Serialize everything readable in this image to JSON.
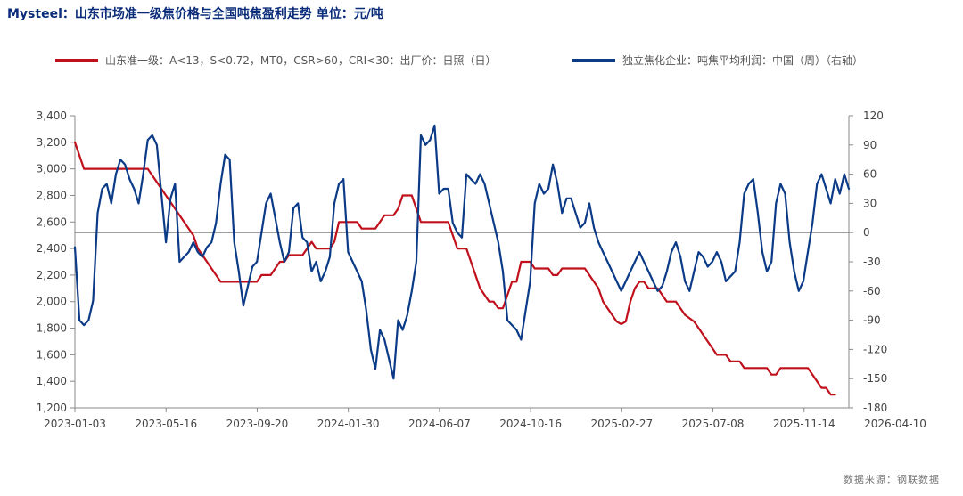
{
  "title": "Mysteel：山东市场准一级焦价格与全国吨焦盈利走势  单位：元/吨",
  "source": "数据来源：钢联数据",
  "colors": {
    "left_series": "#c0101c",
    "right_series": "#0b3a87",
    "zero_line": "#7f7f7f",
    "axis": "#888888"
  },
  "chart_data": {
    "type": "line",
    "title": "Mysteel：山东市场准一级焦价格与全国吨焦盈利走势",
    "unit": "元/吨",
    "legend_position": "top",
    "grid": false,
    "x_ticks": [
      "2023-01-03",
      "2023-05-16",
      "2023-09-20",
      "2024-01-30",
      "2024-06-07",
      "2024-10-16",
      "2025-02-27",
      "2025-07-08",
      "2025-11-14",
      "2026-04-10"
    ],
    "y_left": {
      "range": [
        1200,
        3400
      ],
      "ticks": [
        "3,400",
        "3,200",
        "3,000",
        "2,800",
        "2,600",
        "2,400",
        "2,200",
        "2,000",
        "1,800",
        "1,600",
        "1,400",
        "1,200"
      ]
    },
    "y_right": {
      "range": [
        -180,
        120
      ],
      "ticks": [
        "120",
        "90",
        "60",
        "30",
        "0",
        "-30",
        "-60",
        "-90",
        "-120",
        "-150",
        "-180"
      ]
    },
    "x_index_range": [
      0,
      170
    ],
    "series": [
      {
        "name": "山东准一级：A<13，S<0.72，MT0，CSR>60，CRI<30：出厂价：日照（日）",
        "axis": "left",
        "color": "#c0101c",
        "points": [
          [
            0,
            3200
          ],
          [
            1,
            3100
          ],
          [
            2,
            3000
          ],
          [
            4,
            3000
          ],
          [
            6,
            3000
          ],
          [
            10,
            3000
          ],
          [
            14,
            3000
          ],
          [
            16,
            3000
          ],
          [
            18,
            2900
          ],
          [
            20,
            2800
          ],
          [
            22,
            2700
          ],
          [
            24,
            2600
          ],
          [
            26,
            2500
          ],
          [
            27,
            2400
          ],
          [
            28,
            2350
          ],
          [
            29,
            2300
          ],
          [
            30,
            2250
          ],
          [
            31,
            2200
          ],
          [
            32,
            2150
          ],
          [
            34,
            2150
          ],
          [
            36,
            2150
          ],
          [
            38,
            2150
          ],
          [
            40,
            2150
          ],
          [
            41,
            2200
          ],
          [
            43,
            2200
          ],
          [
            44,
            2250
          ],
          [
            45,
            2300
          ],
          [
            46,
            2300
          ],
          [
            47,
            2350
          ],
          [
            50,
            2350
          ],
          [
            51,
            2400
          ],
          [
            52,
            2450
          ],
          [
            53,
            2400
          ],
          [
            54,
            2400
          ],
          [
            56,
            2400
          ],
          [
            57,
            2450
          ],
          [
            58,
            2600
          ],
          [
            60,
            2600
          ],
          [
            62,
            2600
          ],
          [
            63,
            2550
          ],
          [
            64,
            2550
          ],
          [
            66,
            2550
          ],
          [
            67,
            2600
          ],
          [
            68,
            2650
          ],
          [
            70,
            2650
          ],
          [
            71,
            2700
          ],
          [
            72,
            2800
          ],
          [
            74,
            2800
          ],
          [
            75,
            2700
          ],
          [
            76,
            2600
          ],
          [
            78,
            2600
          ],
          [
            80,
            2600
          ],
          [
            82,
            2600
          ],
          [
            83,
            2500
          ],
          [
            84,
            2400
          ],
          [
            86,
            2400
          ],
          [
            87,
            2300
          ],
          [
            88,
            2200
          ],
          [
            89,
            2100
          ],
          [
            90,
            2050
          ],
          [
            91,
            2000
          ],
          [
            92,
            2000
          ],
          [
            93,
            1950
          ],
          [
            94,
            1950
          ],
          [
            95,
            2050
          ],
          [
            96,
            2150
          ],
          [
            97,
            2150
          ],
          [
            98,
            2300
          ],
          [
            100,
            2300
          ],
          [
            101,
            2250
          ],
          [
            102,
            2250
          ],
          [
            104,
            2250
          ],
          [
            105,
            2200
          ],
          [
            106,
            2200
          ],
          [
            107,
            2250
          ],
          [
            110,
            2250
          ],
          [
            112,
            2250
          ],
          [
            113,
            2200
          ],
          [
            114,
            2150
          ],
          [
            115,
            2100
          ],
          [
            116,
            2000
          ],
          [
            118,
            1900
          ],
          [
            119,
            1850
          ],
          [
            120,
            1830
          ],
          [
            121,
            1850
          ],
          [
            122,
            2000
          ],
          [
            123,
            2100
          ],
          [
            124,
            2150
          ],
          [
            125,
            2150
          ],
          [
            126,
            2100
          ],
          [
            128,
            2100
          ],
          [
            129,
            2050
          ],
          [
            130,
            2000
          ],
          [
            132,
            2000
          ],
          [
            133,
            1950
          ],
          [
            134,
            1900
          ],
          [
            136,
            1850
          ],
          [
            137,
            1800
          ],
          [
            138,
            1750
          ],
          [
            139,
            1700
          ],
          [
            140,
            1650
          ],
          [
            141,
            1600
          ],
          [
            143,
            1600
          ],
          [
            144,
            1550
          ],
          [
            145,
            1550
          ],
          [
            146,
            1550
          ],
          [
            147,
            1500
          ],
          [
            150,
            1500
          ],
          [
            152,
            1500
          ],
          [
            153,
            1450
          ],
          [
            154,
            1450
          ],
          [
            155,
            1500
          ],
          [
            158,
            1500
          ],
          [
            160,
            1500
          ],
          [
            161,
            1500
          ],
          [
            162,
            1450
          ],
          [
            163,
            1400
          ],
          [
            164,
            1350
          ],
          [
            165,
            1350
          ],
          [
            166,
            1300
          ],
          [
            167,
            1300
          ]
        ]
      },
      {
        "name": "独立焦化企业：吨焦平均利润：中国（周）（右轴）",
        "axis": "right",
        "color": "#0b3a87",
        "points": [
          [
            0,
            -15
          ],
          [
            1,
            -90
          ],
          [
            2,
            -95
          ],
          [
            3,
            -90
          ],
          [
            4,
            -70
          ],
          [
            5,
            20
          ],
          [
            6,
            45
          ],
          [
            7,
            50
          ],
          [
            8,
            30
          ],
          [
            9,
            60
          ],
          [
            10,
            75
          ],
          [
            11,
            70
          ],
          [
            12,
            55
          ],
          [
            13,
            45
          ],
          [
            14,
            30
          ],
          [
            15,
            60
          ],
          [
            16,
            95
          ],
          [
            17,
            100
          ],
          [
            18,
            90
          ],
          [
            19,
            40
          ],
          [
            20,
            -10
          ],
          [
            21,
            35
          ],
          [
            22,
            50
          ],
          [
            23,
            -30
          ],
          [
            24,
            -25
          ],
          [
            25,
            -20
          ],
          [
            26,
            -10
          ],
          [
            27,
            -20
          ],
          [
            28,
            -25
          ],
          [
            29,
            -15
          ],
          [
            30,
            -10
          ],
          [
            31,
            10
          ],
          [
            32,
            50
          ],
          [
            33,
            80
          ],
          [
            34,
            75
          ],
          [
            35,
            -10
          ],
          [
            36,
            -40
          ],
          [
            37,
            -75
          ],
          [
            38,
            -55
          ],
          [
            39,
            -35
          ],
          [
            40,
            -30
          ],
          [
            41,
            0
          ],
          [
            42,
            30
          ],
          [
            43,
            40
          ],
          [
            44,
            15
          ],
          [
            45,
            -10
          ],
          [
            46,
            -30
          ],
          [
            47,
            -20
          ],
          [
            48,
            25
          ],
          [
            49,
            30
          ],
          [
            50,
            -5
          ],
          [
            51,
            -10
          ],
          [
            52,
            -40
          ],
          [
            53,
            -30
          ],
          [
            54,
            -50
          ],
          [
            55,
            -40
          ],
          [
            56,
            -25
          ],
          [
            57,
            30
          ],
          [
            58,
            50
          ],
          [
            59,
            55
          ],
          [
            60,
            -20
          ],
          [
            61,
            -30
          ],
          [
            62,
            -40
          ],
          [
            63,
            -50
          ],
          [
            64,
            -80
          ],
          [
            65,
            -120
          ],
          [
            66,
            -140
          ],
          [
            67,
            -100
          ],
          [
            68,
            -110
          ],
          [
            69,
            -130
          ],
          [
            70,
            -150
          ],
          [
            71,
            -90
          ],
          [
            72,
            -100
          ],
          [
            73,
            -85
          ],
          [
            74,
            -60
          ],
          [
            75,
            -30
          ],
          [
            76,
            100
          ],
          [
            77,
            90
          ],
          [
            78,
            95
          ],
          [
            79,
            110
          ],
          [
            80,
            40
          ],
          [
            81,
            45
          ],
          [
            82,
            45
          ],
          [
            83,
            10
          ],
          [
            84,
            0
          ],
          [
            85,
            -5
          ],
          [
            86,
            60
          ],
          [
            87,
            55
          ],
          [
            88,
            50
          ],
          [
            89,
            60
          ],
          [
            90,
            50
          ],
          [
            91,
            30
          ],
          [
            92,
            10
          ],
          [
            93,
            -10
          ],
          [
            94,
            -40
          ],
          [
            95,
            -90
          ],
          [
            96,
            -95
          ],
          [
            97,
            -100
          ],
          [
            98,
            -110
          ],
          [
            99,
            -80
          ],
          [
            100,
            -50
          ],
          [
            101,
            30
          ],
          [
            102,
            50
          ],
          [
            103,
            40
          ],
          [
            104,
            45
          ],
          [
            105,
            70
          ],
          [
            106,
            50
          ],
          [
            107,
            20
          ],
          [
            108,
            35
          ],
          [
            109,
            35
          ],
          [
            110,
            20
          ],
          [
            111,
            5
          ],
          [
            112,
            10
          ],
          [
            113,
            30
          ],
          [
            114,
            5
          ],
          [
            115,
            -10
          ],
          [
            116,
            -20
          ],
          [
            117,
            -30
          ],
          [
            118,
            -40
          ],
          [
            119,
            -50
          ],
          [
            120,
            -60
          ],
          [
            121,
            -50
          ],
          [
            122,
            -40
          ],
          [
            123,
            -30
          ],
          [
            124,
            -20
          ],
          [
            125,
            -30
          ],
          [
            126,
            -40
          ],
          [
            127,
            -50
          ],
          [
            128,
            -60
          ],
          [
            129,
            -55
          ],
          [
            130,
            -40
          ],
          [
            131,
            -20
          ],
          [
            132,
            -10
          ],
          [
            133,
            -25
          ],
          [
            134,
            -50
          ],
          [
            135,
            -60
          ],
          [
            136,
            -40
          ],
          [
            137,
            -20
          ],
          [
            138,
            -25
          ],
          [
            139,
            -35
          ],
          [
            140,
            -30
          ],
          [
            141,
            -20
          ],
          [
            142,
            -30
          ],
          [
            143,
            -50
          ],
          [
            144,
            -45
          ],
          [
            145,
            -40
          ],
          [
            146,
            -10
          ],
          [
            147,
            40
          ],
          [
            148,
            50
          ],
          [
            149,
            55
          ],
          [
            150,
            20
          ],
          [
            151,
            -20
          ],
          [
            152,
            -40
          ],
          [
            153,
            -30
          ],
          [
            154,
            30
          ],
          [
            155,
            50
          ],
          [
            156,
            40
          ],
          [
            157,
            -10
          ],
          [
            158,
            -40
          ],
          [
            159,
            -60
          ],
          [
            160,
            -50
          ],
          [
            161,
            -20
          ],
          [
            162,
            10
          ],
          [
            163,
            50
          ],
          [
            164,
            60
          ],
          [
            165,
            45
          ],
          [
            166,
            30
          ],
          [
            167,
            55
          ],
          [
            168,
            40
          ],
          [
            169,
            60
          ],
          [
            170,
            45
          ]
        ]
      }
    ]
  }
}
